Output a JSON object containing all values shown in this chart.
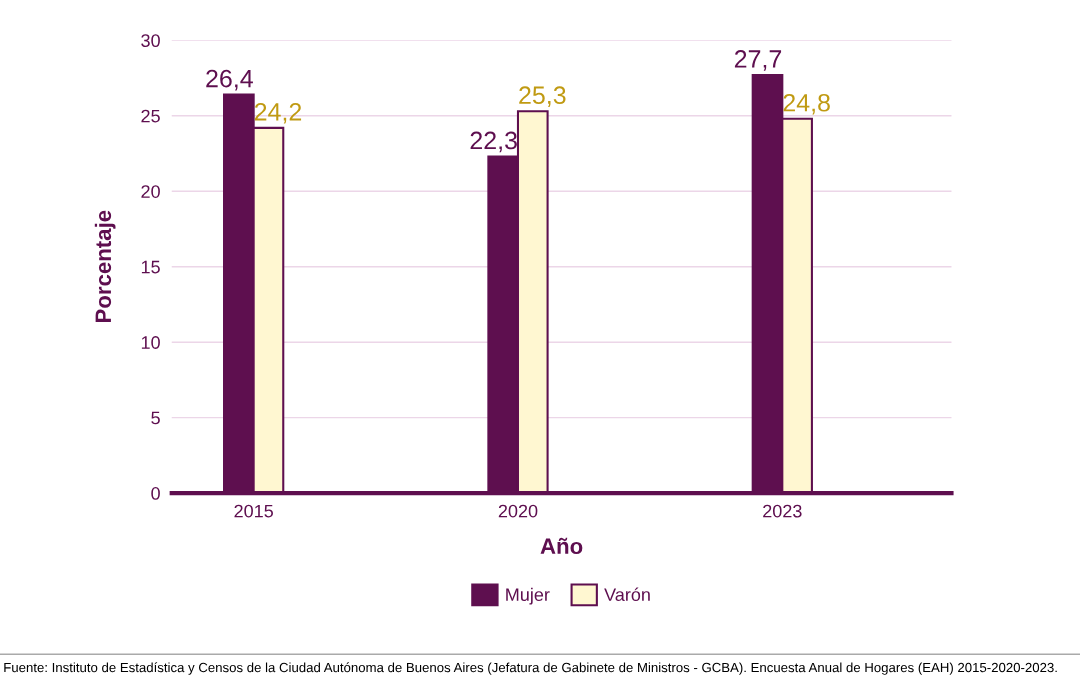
{
  "chart_data": {
    "type": "bar",
    "xlabel": "Año",
    "ylabel": "Porcentaje",
    "categories": [
      "2015",
      "2020",
      "2023"
    ],
    "series": [
      {
        "name": "Mujer",
        "color": "#5e0f4f",
        "values": [
          26.4,
          22.3,
          27.7
        ],
        "value_labels": [
          "26,4",
          "22,3",
          "27,7"
        ]
      },
      {
        "name": "Varón",
        "color": "#fff7d1",
        "values": [
          24.2,
          25.3,
          24.8
        ],
        "value_labels": [
          "24,2",
          "25,3",
          "24,8"
        ]
      }
    ],
    "ylim": [
      0,
      30
    ],
    "yticks": [
      0,
      5,
      10,
      15,
      20,
      25,
      30
    ],
    "grid": "y",
    "legend": "bottom",
    "annotations": [
      "Fuente: Instituto de Estadística y Censos de la Ciudad Autónoma de Buenos Aires (Jefatura de Gabinete de Ministros - GCBA). Encuesta Anual de Hogares (EAH) 2015-2020-2023."
    ]
  }
}
